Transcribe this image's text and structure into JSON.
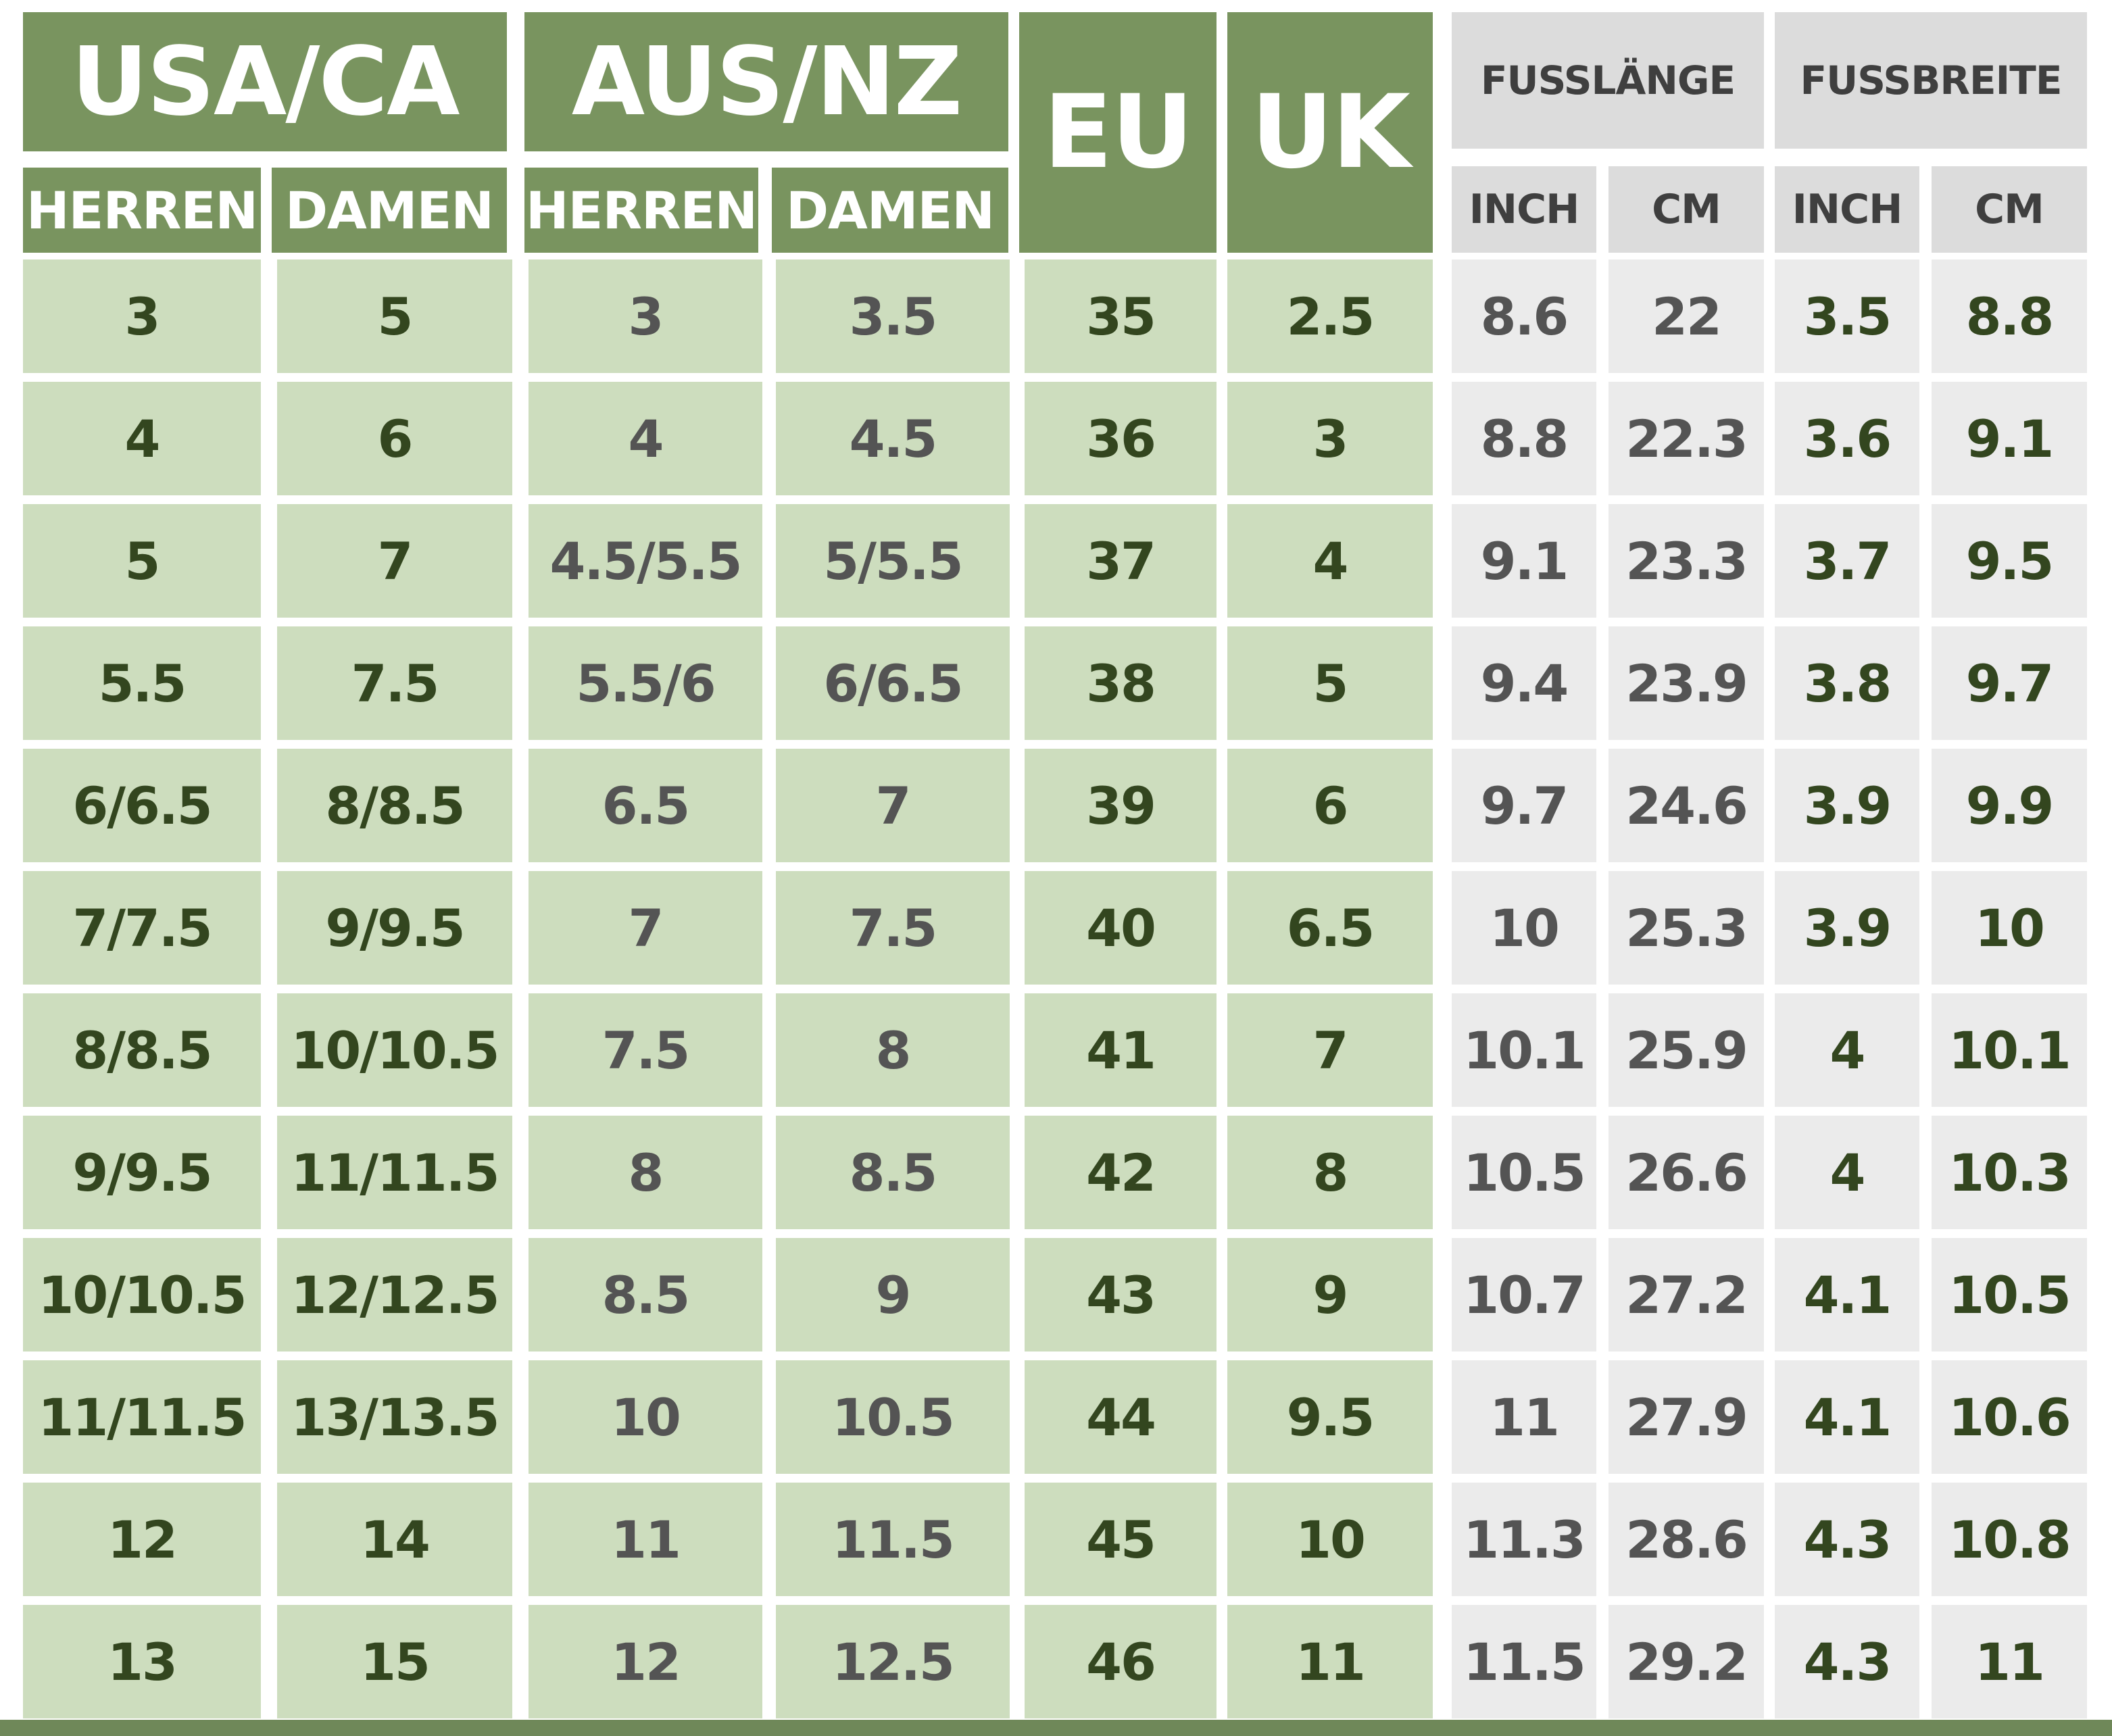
{
  "headers": {
    "usa_ca": "USA/CA",
    "aus_nz": "AUS/NZ",
    "eu": "EU",
    "uk": "UK",
    "fusslaenge": "FUSSLÄNGE",
    "fussbreite": "FUSSBREITE",
    "herren": "HERREN",
    "damen": "DAMEN",
    "inch": "INCH",
    "cm": "CM"
  },
  "rows": [
    [
      "3",
      "5",
      "3",
      "3.5",
      "35",
      "2.5",
      "8.6",
      "22",
      "3.5",
      "8.8"
    ],
    [
      "4",
      "6",
      "4",
      "4.5",
      "36",
      "3",
      "8.8",
      "22.3",
      "3.6",
      "9.1"
    ],
    [
      "5",
      "7",
      "4.5/5.5",
      "5/5.5",
      "37",
      "4",
      "9.1",
      "23.3",
      "3.7",
      "9.5"
    ],
    [
      "5.5",
      "7.5",
      "5.5/6",
      "6/6.5",
      "38",
      "5",
      "9.4",
      "23.9",
      "3.8",
      "9.7"
    ],
    [
      "6/6.5",
      "8/8.5",
      "6.5",
      "7",
      "39",
      "6",
      "9.7",
      "24.6",
      "3.9",
      "9.9"
    ],
    [
      "7/7.5",
      "9/9.5",
      "7",
      "7.5",
      "40",
      "6.5",
      "10",
      "25.3",
      "3.9",
      "10"
    ],
    [
      "8/8.5",
      "10/10.5",
      "7.5",
      "8",
      "41",
      "7",
      "10.1",
      "25.9",
      "4",
      "10.1"
    ],
    [
      "9/9.5",
      "11/11.5",
      "8",
      "8.5",
      "42",
      "8",
      "10.5",
      "26.6",
      "4",
      "10.3"
    ],
    [
      "10/10.5",
      "12/12.5",
      "8.5",
      "9",
      "43",
      "9",
      "10.7",
      "27.2",
      "4.1",
      "10.5"
    ],
    [
      "11/11.5",
      "13/13.5",
      "10",
      "10.5",
      "44",
      "9.5",
      "11",
      "27.9",
      "4.1",
      "10.6"
    ],
    [
      "12",
      "14",
      "11",
      "11.5",
      "45",
      "10",
      "11.3",
      "28.6",
      "4.3",
      "10.8"
    ],
    [
      "13",
      "15",
      "12",
      "12.5",
      "46",
      "11",
      "11.5",
      "29.2",
      "4.3",
      "11"
    ]
  ],
  "colors": {
    "header_green": "#79945f",
    "cell_green": "#cdddbe",
    "header_grey": "#dcdcdc",
    "cell_grey": "#ebebeb",
    "text_dark_green": "#33461f",
    "text_grey": "#545454"
  }
}
